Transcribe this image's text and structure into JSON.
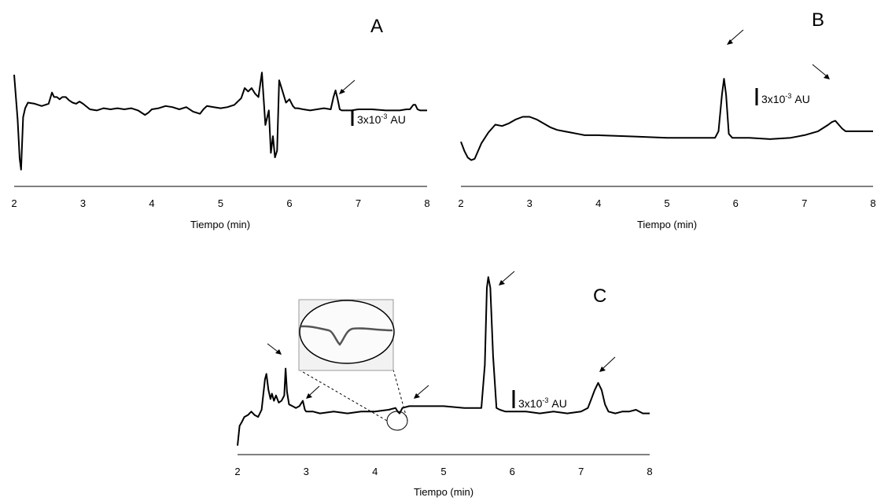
{
  "chart_data": [
    {
      "panel": "A",
      "type": "line",
      "xlabel": "Tiempo (min)",
      "xlim": [
        2,
        8
      ],
      "x_ticks": [
        "2",
        "3",
        "4",
        "5",
        "6",
        "7",
        "8"
      ],
      "scale_bar_label": "3x10",
      "scale_bar_exponent": "-3",
      "scale_bar_unit": "AU",
      "arrows_at": [
        6.7
      ],
      "series": [
        {
          "x": [
            2.0,
            2.05,
            2.08,
            2.1,
            2.13,
            2.16,
            2.2,
            2.3,
            2.4,
            2.5,
            2.55,
            2.58,
            2.62,
            2.66,
            2.7,
            2.75,
            2.8,
            2.85,
            2.9,
            2.95,
            3.0,
            3.1,
            3.2,
            3.3,
            3.4,
            3.5,
            3.6,
            3.7,
            3.8,
            3.9,
            3.95,
            4.0,
            4.1,
            4.2,
            4.3,
            4.4,
            4.5,
            4.6,
            4.7,
            4.75,
            4.8,
            4.9,
            5.0,
            5.1,
            5.2,
            5.3,
            5.35,
            5.4,
            5.45,
            5.5,
            5.55,
            5.6,
            5.65,
            5.7,
            5.73,
            5.76,
            5.79,
            5.82,
            5.85,
            5.9,
            5.95,
            6.0,
            6.05,
            6.08,
            6.12,
            6.2,
            6.3,
            6.4,
            6.5,
            6.6,
            6.64,
            6.67,
            6.7,
            6.73,
            6.76,
            6.8,
            6.9,
            7.0,
            7.2,
            7.4,
            7.6,
            7.7,
            7.75,
            7.8,
            7.83,
            7.86,
            7.9,
            8.0
          ],
          "y": [
            1.0,
            0.6,
            0.25,
            0.15,
            0.62,
            0.7,
            0.75,
            0.74,
            0.72,
            0.74,
            0.84,
            0.8,
            0.8,
            0.78,
            0.8,
            0.8,
            0.77,
            0.75,
            0.74,
            0.76,
            0.74,
            0.69,
            0.68,
            0.7,
            0.69,
            0.7,
            0.69,
            0.7,
            0.68,
            0.64,
            0.66,
            0.69,
            0.7,
            0.72,
            0.71,
            0.69,
            0.71,
            0.67,
            0.65,
            0.69,
            0.72,
            0.71,
            0.7,
            0.71,
            0.73,
            0.79,
            0.88,
            0.85,
            0.88,
            0.83,
            0.8,
            1.02,
            0.55,
            0.68,
            0.3,
            0.45,
            0.26,
            0.32,
            0.95,
            0.85,
            0.75,
            0.78,
            0.72,
            0.7,
            0.7,
            0.69,
            0.68,
            0.69,
            0.7,
            0.69,
            0.8,
            0.86,
            0.78,
            0.69,
            0.68,
            0.68,
            0.68,
            0.69,
            0.69,
            0.68,
            0.68,
            0.69,
            0.69,
            0.73,
            0.73,
            0.69,
            0.68,
            0.68
          ]
        }
      ]
    },
    {
      "panel": "B",
      "type": "line",
      "xlabel": "Tiempo (min)",
      "xlim": [
        2,
        8
      ],
      "x_ticks": [
        "2",
        "3",
        "4",
        "5",
        "6",
        "7",
        "8"
      ],
      "scale_bar_label": "3x10",
      "scale_bar_exponent": "-3",
      "scale_bar_unit": "AU",
      "arrows_at": [
        5.85,
        7.45
      ],
      "series": [
        {
          "x": [
            2.0,
            2.05,
            2.1,
            2.15,
            2.2,
            2.3,
            2.4,
            2.5,
            2.6,
            2.7,
            2.8,
            2.9,
            3.0,
            3.1,
            3.2,
            3.3,
            3.4,
            3.5,
            3.6,
            3.7,
            3.8,
            4.0,
            4.5,
            5.0,
            5.5,
            5.7,
            5.75,
            5.8,
            5.83,
            5.86,
            5.9,
            5.95,
            6.0,
            6.2,
            6.5,
            6.8,
            7.0,
            7.2,
            7.35,
            7.4,
            7.45,
            7.5,
            7.55,
            7.6,
            8.0
          ],
          "y": [
            0.34,
            0.27,
            0.22,
            0.2,
            0.21,
            0.33,
            0.41,
            0.47,
            0.46,
            0.48,
            0.51,
            0.53,
            0.53,
            0.51,
            0.48,
            0.45,
            0.43,
            0.42,
            0.41,
            0.4,
            0.39,
            0.39,
            0.38,
            0.37,
            0.37,
            0.37,
            0.42,
            0.7,
            0.82,
            0.7,
            0.4,
            0.37,
            0.37,
            0.37,
            0.36,
            0.37,
            0.39,
            0.42,
            0.47,
            0.49,
            0.5,
            0.47,
            0.44,
            0.42,
            0.42
          ]
        }
      ]
    },
    {
      "panel": "C",
      "type": "line",
      "xlabel": "Tiempo (min)",
      "xlim": [
        2,
        8
      ],
      "x_ticks": [
        "2",
        "3",
        "4",
        "5",
        "6",
        "7",
        "8"
      ],
      "scale_bar_label": "3x10",
      "scale_bar_exponent": "-3",
      "scale_bar_unit": "AU",
      "arrows_at": [
        2.7,
        2.95,
        4.35,
        5.65,
        7.25
      ],
      "series": [
        {
          "x": [
            2.0,
            2.03,
            2.06,
            2.1,
            2.15,
            2.2,
            2.25,
            2.3,
            2.35,
            2.4,
            2.42,
            2.45,
            2.48,
            2.5,
            2.53,
            2.56,
            2.6,
            2.64,
            2.68,
            2.7,
            2.72,
            2.75,
            2.8,
            2.85,
            2.9,
            2.95,
            2.98,
            3.0,
            3.05,
            3.1,
            3.2,
            3.4,
            3.6,
            3.8,
            4.0,
            4.2,
            4.3,
            4.33,
            4.36,
            4.4,
            4.5,
            4.7,
            5.0,
            5.3,
            5.5,
            5.55,
            5.6,
            5.63,
            5.65,
            5.68,
            5.72,
            5.77,
            5.82,
            5.9,
            6.0,
            6.2,
            6.4,
            6.6,
            6.8,
            7.0,
            7.1,
            7.15,
            7.2,
            7.25,
            7.3,
            7.35,
            7.4,
            7.5,
            7.6,
            7.7,
            7.8,
            7.9,
            8.0
          ],
          "y": [
            0.05,
            0.16,
            0.18,
            0.21,
            0.22,
            0.24,
            0.22,
            0.21,
            0.25,
            0.42,
            0.45,
            0.36,
            0.31,
            0.34,
            0.3,
            0.33,
            0.29,
            0.3,
            0.33,
            0.48,
            0.35,
            0.28,
            0.27,
            0.26,
            0.27,
            0.3,
            0.25,
            0.24,
            0.24,
            0.24,
            0.23,
            0.24,
            0.23,
            0.24,
            0.24,
            0.25,
            0.26,
            0.24,
            0.23,
            0.26,
            0.27,
            0.27,
            0.27,
            0.26,
            0.26,
            0.26,
            0.5,
            0.93,
            0.99,
            0.93,
            0.55,
            0.26,
            0.25,
            0.24,
            0.24,
            0.24,
            0.23,
            0.24,
            0.23,
            0.24,
            0.26,
            0.31,
            0.36,
            0.4,
            0.36,
            0.28,
            0.24,
            0.23,
            0.24,
            0.24,
            0.25,
            0.23,
            0.23
          ]
        }
      ]
    }
  ]
}
